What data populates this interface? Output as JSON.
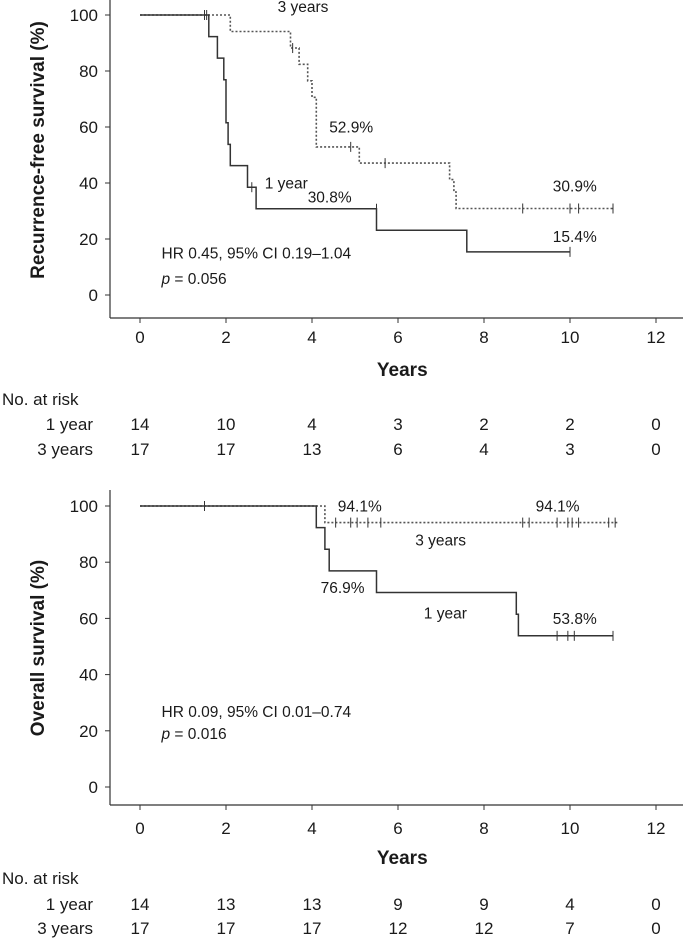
{
  "chart_data": [
    {
      "type": "line",
      "subtype": "kaplan-meier",
      "ylabel": "Recurrence-free survival (%)",
      "xlabel": "Years",
      "xlim": [
        -1,
        12.6
      ],
      "ylim": [
        -5,
        103
      ],
      "xticks": [
        0,
        2,
        4,
        6,
        8,
        10,
        12
      ],
      "yticks": [
        0,
        20,
        40,
        60,
        80,
        100
      ],
      "series": [
        {
          "name": "3 years",
          "style": "dotted",
          "steps": [
            [
              0,
              100
            ],
            [
              2.1,
              100
            ],
            [
              2.1,
              94.1
            ],
            [
              3.5,
              94.1
            ],
            [
              3.5,
              88.2
            ],
            [
              3.7,
              88.2
            ],
            [
              3.7,
              82.4
            ],
            [
              3.9,
              82.4
            ],
            [
              3.9,
              76.5
            ],
            [
              4.0,
              76.5
            ],
            [
              4.0,
              70.6
            ],
            [
              4.1,
              70.6
            ],
            [
              4.1,
              52.9
            ],
            [
              5.1,
              52.9
            ],
            [
              5.1,
              47.1
            ],
            [
              7.2,
              47.1
            ],
            [
              7.2,
              41.2
            ],
            [
              7.3,
              41.2
            ],
            [
              7.3,
              36.8
            ],
            [
              7.35,
              36.8
            ],
            [
              7.35,
              30.9
            ],
            [
              11.0,
              30.9
            ]
          ],
          "censor": [
            [
              1.5,
              100
            ],
            [
              3.55,
              88.2
            ],
            [
              4.9,
              52.9
            ],
            [
              5.7,
              47.1
            ],
            [
              8.9,
              30.9
            ],
            [
              10.0,
              30.9
            ],
            [
              10.2,
              30.9
            ],
            [
              11.0,
              30.9
            ]
          ]
        },
        {
          "name": "1 year",
          "style": "solid",
          "steps": [
            [
              0,
              100
            ],
            [
              1.6,
              100
            ],
            [
              1.6,
              92.3
            ],
            [
              1.8,
              92.3
            ],
            [
              1.8,
              84.6
            ],
            [
              1.95,
              84.6
            ],
            [
              1.95,
              76.9
            ],
            [
              2.0,
              76.9
            ],
            [
              2.0,
              61.5
            ],
            [
              2.05,
              61.5
            ],
            [
              2.05,
              53.8
            ],
            [
              2.1,
              53.8
            ],
            [
              2.1,
              46.2
            ],
            [
              2.5,
              46.2
            ],
            [
              2.5,
              38.5
            ],
            [
              2.7,
              38.5
            ],
            [
              2.7,
              30.8
            ],
            [
              5.5,
              30.8
            ],
            [
              5.5,
              23.1
            ],
            [
              7.6,
              23.1
            ],
            [
              7.6,
              15.4
            ],
            [
              10.0,
              15.4
            ]
          ],
          "censor": [
            [
              1.55,
              100
            ],
            [
              2.6,
              38.5
            ],
            [
              5.5,
              30.8
            ],
            [
              10.0,
              15.4
            ]
          ]
        }
      ],
      "annotations": [
        {
          "text": "3 years",
          "x": 3.2,
          "y": 101
        },
        {
          "text": "52.9%",
          "x": 4.4,
          "y": 58
        },
        {
          "text": "1 year",
          "x": 2.9,
          "y": 38
        },
        {
          "text": "30.8%",
          "x": 3.9,
          "y": 33
        },
        {
          "text": "30.9%",
          "x": 9.6,
          "y": 37
        },
        {
          "text": "15.4%",
          "x": 9.6,
          "y": 19
        },
        {
          "text": "HR 0.45, 95% CI 0.19–1.04",
          "x": 0.5,
          "y": 13
        },
        {
          "text": "p = 0.056",
          "x": 0.5,
          "y": 4
        }
      ],
      "risk_table": {
        "title": "No. at risk",
        "rows": [
          {
            "label": "1 year",
            "values": [
              "14",
              "10",
              "4",
              "3",
              "2",
              "2",
              "0"
            ]
          },
          {
            "label": "3 years",
            "values": [
              "17",
              "17",
              "13",
              "6",
              "4",
              "3",
              "0"
            ]
          }
        ]
      }
    },
    {
      "type": "line",
      "subtype": "kaplan-meier",
      "ylabel": "Overall survival (%)",
      "xlabel": "Years",
      "xlim": [
        -1,
        12.6
      ],
      "ylim": [
        -5,
        103
      ],
      "xticks": [
        0,
        2,
        4,
        6,
        8,
        10,
        12
      ],
      "yticks": [
        0,
        20,
        40,
        60,
        80,
        100
      ],
      "series": [
        {
          "name": "3 years",
          "style": "dotted",
          "steps": [
            [
              0,
              100
            ],
            [
              4.3,
              100
            ],
            [
              4.3,
              94.1
            ],
            [
              11.1,
              94.1
            ]
          ],
          "censor": [
            [
              1.5,
              100
            ],
            [
              4.55,
              94.1
            ],
            [
              4.9,
              94.1
            ],
            [
              5.05,
              94.1
            ],
            [
              5.3,
              94.1
            ],
            [
              5.6,
              94.1
            ],
            [
              8.9,
              94.1
            ],
            [
              9.05,
              94.1
            ],
            [
              9.7,
              94.1
            ],
            [
              9.95,
              94.1
            ],
            [
              10.05,
              94.1
            ],
            [
              10.2,
              94.1
            ],
            [
              10.9,
              94.1
            ],
            [
              11.05,
              94.1
            ]
          ],
          "tail_censor_only": true
        },
        {
          "name": "1 year",
          "style": "solid",
          "steps": [
            [
              0,
              100
            ],
            [
              4.1,
              100
            ],
            [
              4.1,
              92.3
            ],
            [
              4.3,
              92.3
            ],
            [
              4.3,
              84.6
            ],
            [
              4.4,
              84.6
            ],
            [
              4.4,
              76.9
            ],
            [
              5.5,
              76.9
            ],
            [
              5.5,
              69.2
            ],
            [
              8.75,
              69.2
            ],
            [
              8.75,
              61.5
            ],
            [
              8.8,
              61.5
            ],
            [
              8.8,
              53.8
            ],
            [
              11.0,
              53.8
            ]
          ],
          "censor": [
            [
              9.7,
              53.8
            ],
            [
              9.95,
              53.8
            ],
            [
              10.1,
              53.8
            ],
            [
              11.0,
              53.8
            ]
          ]
        }
      ],
      "annotations": [
        {
          "text": "94.1%",
          "x": 4.6,
          "y": 98
        },
        {
          "text": "94.1%",
          "x": 9.2,
          "y": 98
        },
        {
          "text": "3 years",
          "x": 6.4,
          "y": 86
        },
        {
          "text": "76.9%",
          "x": 4.2,
          "y": 69
        },
        {
          "text": "1 year",
          "x": 6.6,
          "y": 60
        },
        {
          "text": "53.8%",
          "x": 9.6,
          "y": 58
        },
        {
          "text": "HR 0.09, 95% CI 0.01–0.74",
          "x": 0.5,
          "y": 25
        },
        {
          "text": "p = 0.016",
          "x": 0.5,
          "y": 17
        }
      ],
      "risk_table": {
        "title": "No. at risk",
        "rows": [
          {
            "label": "1 year",
            "values": [
              "14",
              "13",
              "13",
              "9",
              "9",
              "4",
              "0"
            ]
          },
          {
            "label": "3 years",
            "values": [
              "17",
              "17",
              "17",
              "12",
              "12",
              "7",
              "0"
            ]
          }
        ]
      }
    }
  ]
}
